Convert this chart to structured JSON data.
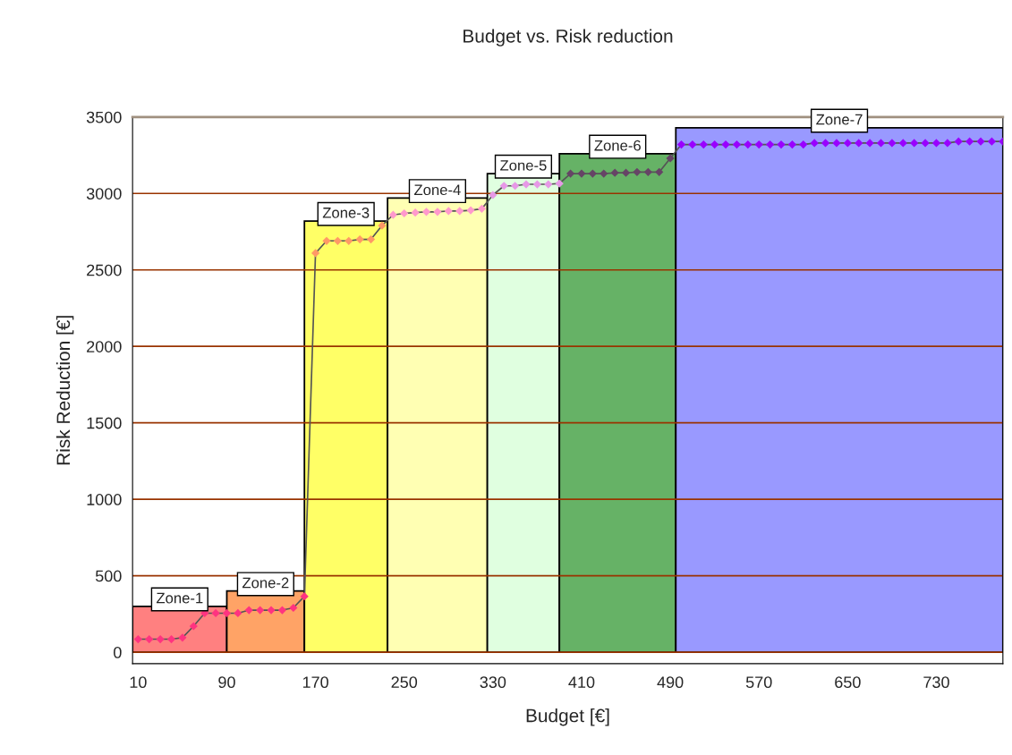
{
  "chart_data": {
    "type": "line",
    "title": "Budget vs. Risk reduction",
    "xlabel": "Budget [€]",
    "ylabel": "Risk Reduction [€]",
    "xlim": [
      5,
      790
    ],
    "xticks": [
      10,
      90,
      170,
      250,
      330,
      410,
      490,
      570,
      650,
      730
    ],
    "ylim": [
      -75,
      3500
    ],
    "yticks": [
      0,
      500,
      1000,
      1500,
      2000,
      2500,
      3000,
      3500
    ],
    "grid": "y",
    "annotations": [
      {
        "text": "Zone-1",
        "x": 47.5,
        "y": 300
      },
      {
        "text": "Zone-2",
        "x": 125,
        "y": 400
      },
      {
        "text": "Zone-3",
        "x": 197.5,
        "y": 2820
      },
      {
        "text": "Zone-4",
        "x": 280,
        "y": 2970
      },
      {
        "text": "Zone-5",
        "x": 357.5,
        "y": 3130
      },
      {
        "text": "Zone-6",
        "x": 442.5,
        "y": 3260
      },
      {
        "text": "Zone-7",
        "x": 642.5,
        "y": 3430
      }
    ],
    "series": [
      {
        "type": "histogram",
        "bins": [
          5,
          90,
          160,
          235,
          325,
          390,
          495,
          790
        ],
        "values": [
          300,
          400,
          2820,
          2970,
          3130,
          3260,
          3430
        ],
        "colors": [
          "#ff8080",
          "#ffa366",
          "#ffff66",
          "#ffffb3",
          "#e0ffe0",
          "#66b266",
          "#9999ff"
        ]
      },
      {
        "marker": "diamond",
        "line_style": "solid",
        "color": "#555555",
        "x": [
          10,
          20,
          30,
          40,
          50,
          60,
          70,
          80,
          90,
          100,
          110,
          120,
          130,
          140,
          150,
          160,
          170,
          180,
          190,
          200,
          210,
          220,
          230,
          240,
          250,
          260,
          270,
          280,
          290,
          300,
          310,
          320,
          330,
          340,
          350,
          360,
          370,
          380,
          390,
          400,
          410,
          420,
          430,
          440,
          450,
          460,
          470,
          480,
          490,
          500,
          510,
          520,
          530,
          540,
          550,
          560,
          570,
          580,
          590,
          600,
          610,
          620,
          630,
          640,
          650,
          660,
          670,
          680,
          690,
          700,
          710,
          720,
          730,
          740,
          750,
          760,
          770,
          780,
          790
        ],
        "values": [
          85,
          85,
          85,
          85,
          95,
          170,
          255,
          255,
          255,
          255,
          275,
          275,
          275,
          275,
          290,
          365,
          2610,
          2690,
          2690,
          2690,
          2700,
          2700,
          2790,
          2860,
          2870,
          2875,
          2880,
          2880,
          2885,
          2885,
          2890,
          2900,
          2990,
          3050,
          3050,
          3060,
          3060,
          3060,
          3065,
          3130,
          3130,
          3130,
          3130,
          3135,
          3135,
          3140,
          3140,
          3140,
          3230,
          3320,
          3320,
          3320,
          3320,
          3320,
          3320,
          3320,
          3320,
          3320,
          3320,
          3320,
          3320,
          3330,
          3330,
          3330,
          3330,
          3330,
          3330,
          3330,
          3330,
          3330,
          3330,
          3330,
          3330,
          3330,
          3340,
          3340,
          3340,
          3340,
          3340
        ],
        "colors": [
          "#ff3380",
          "#ff3380",
          "#ff3380",
          "#ff3380",
          "#ff3380",
          "#ff3380",
          "#ff3380",
          "#ff3380",
          "#ff3380",
          "#ff3380",
          "#ff3380",
          "#ff3380",
          "#ff3380",
          "#ff3380",
          "#ff3380",
          "#ff3380",
          "#ff9966",
          "#ff9966",
          "#ff9966",
          "#ff9966",
          "#ff9966",
          "#ff9966",
          "#ff9966",
          "#ff99cc",
          "#ff99cc",
          "#ff99cc",
          "#ff99cc",
          "#ff99cc",
          "#ff99cc",
          "#ff99cc",
          "#ff99cc",
          "#ff99cc",
          "#e699e6",
          "#e699e6",
          "#e699e6",
          "#e699e6",
          "#e699e6",
          "#e699e6",
          "#e699e6",
          "#664466",
          "#664466",
          "#664466",
          "#664466",
          "#664466",
          "#664466",
          "#664466",
          "#664466",
          "#664466",
          "#664466",
          "#9900ff",
          "#9900ff",
          "#9900ff",
          "#9900ff",
          "#9900ff",
          "#9900ff",
          "#9900ff",
          "#9900ff",
          "#9900ff",
          "#9900ff",
          "#9900ff",
          "#9900ff",
          "#9900ff",
          "#9900ff",
          "#9900ff",
          "#9900ff",
          "#9900ff",
          "#9900ff",
          "#9900ff",
          "#9900ff",
          "#9900ff",
          "#9900ff",
          "#9900ff",
          "#9900ff",
          "#9900ff",
          "#9900ff",
          "#9900ff",
          "#9900ff",
          "#9900ff",
          "#9900ff"
        ]
      }
    ]
  }
}
